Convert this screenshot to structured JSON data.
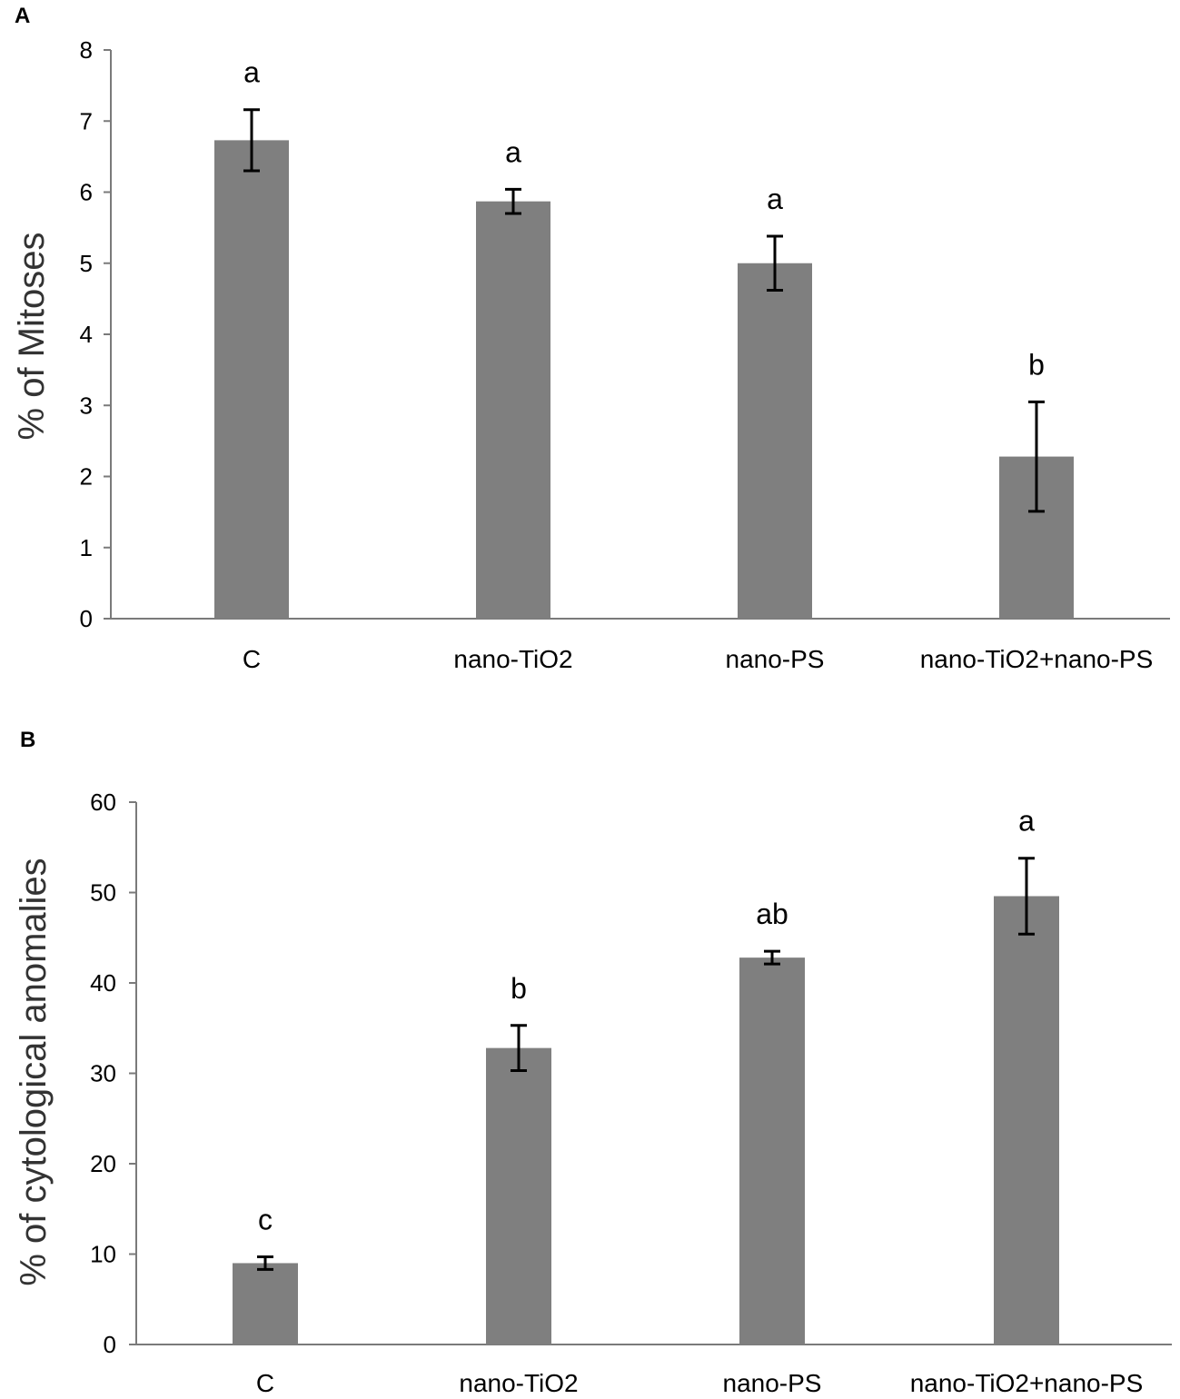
{
  "chart_data": [
    {
      "panel": "A",
      "type": "bar",
      "title": "",
      "xlabel": "",
      "ylabel": "% of Mitoses",
      "ylim": [
        0,
        8
      ],
      "yticks": [
        "0",
        "1",
        "2",
        "3",
        "4",
        "5",
        "6",
        "7",
        "8"
      ],
      "grid": false,
      "categories": [
        "C",
        "nano-TiO2",
        "nano-PS",
        "nano-TiO2+nano-PS"
      ],
      "values": [
        6.73,
        5.87,
        5.0,
        2.28
      ],
      "errors": [
        0.43,
        0.17,
        0.38,
        0.77
      ],
      "significance": [
        "a",
        "a",
        "a",
        "b"
      ],
      "bar_color": "#7f7f7f"
    },
    {
      "panel": "B",
      "type": "bar",
      "title": "",
      "xlabel": "",
      "ylabel": "% of cytological anomalies",
      "ylim": [
        0,
        60
      ],
      "yticks": [
        "0",
        "10",
        "20",
        "30",
        "40",
        "50",
        "60"
      ],
      "grid": false,
      "categories": [
        "C",
        "nano-TiO2",
        "nano-PS",
        "nano-TiO2+nano-PS"
      ],
      "values": [
        9.0,
        32.8,
        42.8,
        49.6
      ],
      "errors": [
        0.7,
        2.5,
        0.7,
        4.2
      ],
      "significance": [
        "c",
        "b",
        "ab",
        "a"
      ],
      "bar_color": "#7f7f7f"
    }
  ]
}
